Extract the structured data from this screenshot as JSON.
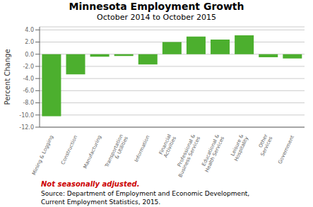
{
  "chart_data": {
    "type": "bar",
    "title": "Minnesota Employment Growth",
    "subtitle": "October 2014 to October 2015",
    "ylabel": "Percent Change",
    "categories": [
      "Mining & Logging",
      "Construction",
      "Manufacturing",
      "Transportation\n& Utilities",
      "Information",
      "Financial\nActivities",
      "Professional &\nBusiness Services",
      "Educational &\nHealth Services",
      "Leisure &\nHospitality",
      "Other\nServices",
      "Government"
    ],
    "values": [
      -10.2,
      -3.3,
      -0.4,
      -0.3,
      -1.7,
      2.0,
      2.9,
      2.4,
      3.1,
      -0.5,
      -0.7
    ],
    "color": "#4caf2e",
    "ylim": [
      -12.0,
      4.5
    ],
    "yticks": [
      {
        "value": -12,
        "label": "-12.0"
      },
      {
        "value": -10,
        "label": "-10.0"
      },
      {
        "value": -8,
        "label": "-8.0"
      },
      {
        "value": -6,
        "label": "-6.0"
      },
      {
        "value": -4,
        "label": "-4.0"
      },
      {
        "value": -2,
        "label": "-2.0"
      },
      {
        "value": 0,
        "label": "0.0"
      },
      {
        "value": 2,
        "label": "2.0"
      },
      {
        "value": 4,
        "label": "4.0"
      }
    ],
    "grid": true,
    "annotations": [
      {
        "text": "Not seasonally adjusted.",
        "color": "#cc0000"
      },
      {
        "text": "Source: Department of Employment and Economic Development,"
      },
      {
        "text": "Current Employment Statistics, 2015."
      }
    ]
  }
}
